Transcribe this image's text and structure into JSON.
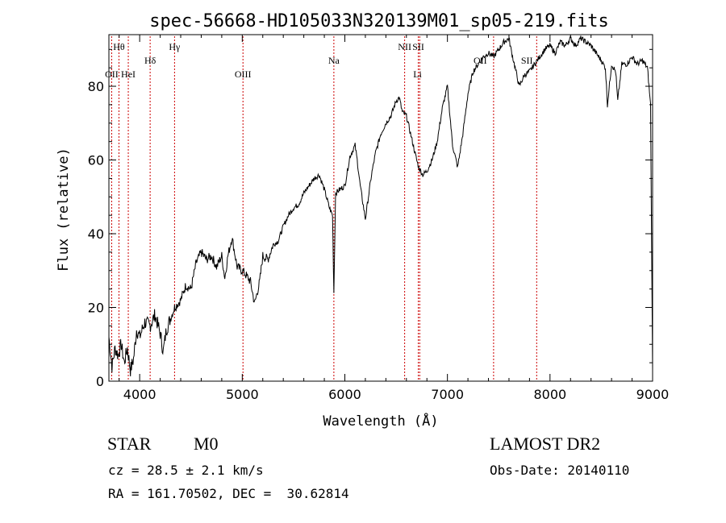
{
  "chart_data": {
    "type": "line",
    "title": "spec-56668-HD105033N320139M01_sp05-219.fits",
    "xlabel": "Wavelength (Å)",
    "ylabel": "Flux (relative)",
    "xlim": [
      3700,
      9000
    ],
    "ylim": [
      0,
      94
    ],
    "xticks": [
      4000,
      5000,
      6000,
      7000,
      8000,
      9000
    ],
    "yticks": [
      0,
      20,
      40,
      60,
      80
    ],
    "grid": false,
    "line_color": "#000000",
    "marker_color": "#cc0000",
    "series": [
      {
        "x": [
          3700,
          3730,
          3760,
          3790,
          3820,
          3850,
          3880,
          3910,
          3940,
          3970,
          4000,
          4050,
          4100,
          4150,
          4200,
          4230,
          4260,
          4300,
          4340,
          4400,
          4450,
          4500,
          4550,
          4600,
          4650,
          4700,
          4750,
          4800,
          4830,
          4860,
          4900,
          4950,
          5000,
          5030,
          5080,
          5120,
          5170,
          5200,
          5250,
          5300,
          5350,
          5400,
          5450,
          5500,
          5550,
          5600,
          5650,
          5700,
          5750,
          5800,
          5850,
          5880,
          5893,
          5910,
          5950,
          6000,
          6050,
          6100,
          6120,
          6150,
          6200,
          6230,
          6260,
          6300,
          6350,
          6400,
          6450,
          6500,
          6530,
          6560,
          6600,
          6650,
          6700,
          6720,
          6760,
          6800,
          6850,
          6900,
          6950,
          7000,
          7050,
          7100,
          7150,
          7200,
          7250,
          7300,
          7350,
          7400,
          7450,
          7500,
          7550,
          7600,
          7620,
          7660,
          7700,
          7750,
          7800,
          7850,
          7900,
          7950,
          8000,
          8050,
          8100,
          8150,
          8200,
          8250,
          8300,
          8350,
          8400,
          8450,
          8500,
          8540,
          8560,
          8600,
          8640,
          8660,
          8700,
          8750,
          8800,
          8850,
          8900,
          8950,
          8980,
          9000
        ],
        "y": [
          12,
          4,
          9,
          7,
          10,
          5,
          9,
          3,
          6,
          14,
          12,
          16,
          15,
          18,
          13,
          8,
          14,
          17,
          20,
          22,
          26,
          25,
          32,
          35,
          33,
          34,
          31,
          34,
          28,
          34,
          39,
          31,
          30,
          29,
          27,
          21,
          27,
          34,
          33,
          37,
          38,
          42,
          45,
          47,
          48,
          51,
          53,
          55,
          56,
          52,
          47,
          45,
          24,
          51,
          52,
          53,
          61,
          64,
          60,
          53,
          44,
          50,
          56,
          62,
          67,
          70,
          72,
          76,
          77,
          73,
          72,
          66,
          60,
          58,
          56,
          57,
          60,
          65,
          74,
          80,
          64,
          58,
          67,
          78,
          84,
          86,
          88,
          89,
          88,
          90,
          92,
          93,
          90,
          85,
          80,
          83,
          84,
          86,
          88,
          90,
          91,
          89,
          92,
          91,
          93,
          91,
          93,
          92,
          91,
          89,
          87,
          85,
          75,
          86,
          84,
          76,
          86,
          86,
          88,
          86,
          87,
          85,
          75,
          3
        ]
      }
    ],
    "annotations": [
      {
        "label": "Hθ",
        "x": 3798,
        "row": 1
      },
      {
        "label": "OII",
        "x": 3727,
        "row": 2
      },
      {
        "label": "HeI",
        "x": 3889,
        "row": 2
      },
      {
        "label": "Hδ",
        "x": 4102,
        "row": 1.5
      },
      {
        "label": "Hγ",
        "x": 4340,
        "row": 1
      },
      {
        "label": "OIII",
        "x": 5007,
        "row": 2
      },
      {
        "label": "Na",
        "x": 5893,
        "row": 1.5
      },
      {
        "label": "NII",
        "x": 6583,
        "row": 1
      },
      {
        "label": "SII",
        "x": 6716,
        "row": 1
      },
      {
        "label": "Li",
        "x": 6708,
        "row": 2
      },
      {
        "label": "OII",
        "x": 7320,
        "row": 1.5
      },
      {
        "label": "SII",
        "x": 7775,
        "row": 1.5
      }
    ],
    "marker_lines_x": [
      3727,
      3798,
      3889,
      4102,
      4340,
      5007,
      5893,
      6583,
      6716,
      6730,
      7450,
      7870
    ]
  },
  "info": {
    "object_class": "STAR",
    "subclass": "M0",
    "survey": "LAMOST DR2",
    "redshift": "cz = 28.5 ± 2.1 km/s",
    "obs_date": "Obs-Date: 20140110",
    "coords": "RA = 161.70502, DEC =  30.62814"
  }
}
